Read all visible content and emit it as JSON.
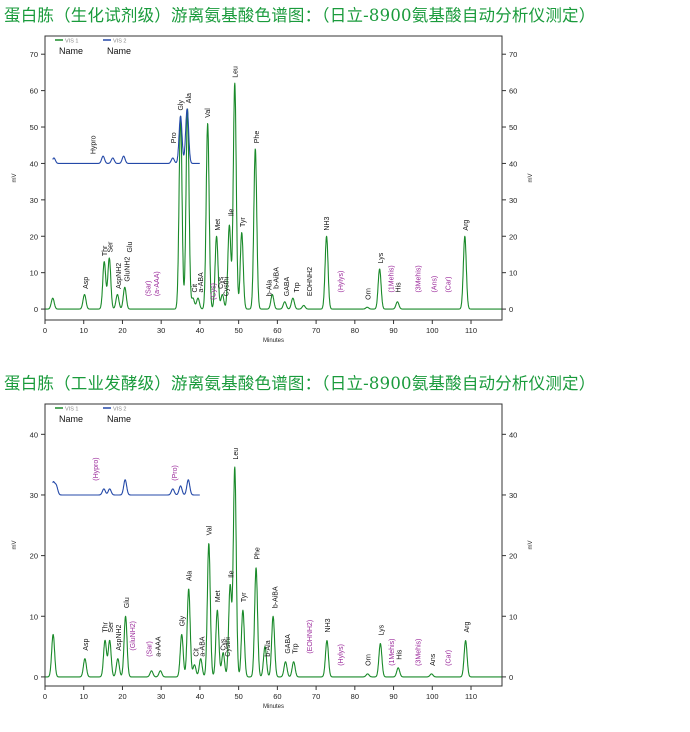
{
  "charts": [
    {
      "heading": "蛋白胨（生化试剂级）游离氨基酸色谱图：（日立-8900氨基酸自动分析仪测定）",
      "legend": [
        {
          "tag": "VIS 1",
          "name": "Name",
          "color": "#1a8a2a"
        },
        {
          "tag": "VIS 2",
          "name": "Name",
          "color": "#2449a8"
        }
      ]
    },
    {
      "heading": "蛋白胨（工业发酵级）游离氨基酸色谱图：（日立-8900氨基酸自动分析仪测定）",
      "legend": [
        {
          "tag": "VIS 1",
          "name": "Name",
          "color": "#1a8a2a"
        },
        {
          "tag": "VIS 2",
          "name": "Name",
          "color": "#2449a8"
        }
      ]
    }
  ],
  "chart_data": [
    {
      "type": "line",
      "title": "蛋白胨（生化试剂级）游离氨基酸色谱图：（日立-8900氨基酸自动分析仪测定）",
      "xlabel": "Minutes",
      "ylabel": "mV",
      "xlim": [
        0,
        118
      ],
      "ylim": [
        -3,
        75
      ],
      "x_ticks": [
        0,
        10,
        20,
        30,
        40,
        50,
        60,
        70,
        80,
        90,
        100,
        110
      ],
      "y_ticks": [
        0,
        10,
        20,
        30,
        40,
        50,
        60,
        70
      ],
      "colors": {
        "series1": "#1a8a2a",
        "series2": "#2449a8",
        "label": "#111111",
        "undetected": "#9b2a9b"
      },
      "series": [
        {
          "name": "VIS 1",
          "baseline": 0,
          "peaks": [
            {
              "x": 2.0,
              "h": 3
            },
            {
              "x": 10.2,
              "h": 4
            },
            {
              "x": 15.3,
              "h": 13
            },
            {
              "x": 16.6,
              "h": 14
            },
            {
              "x": 18.7,
              "h": 4
            },
            {
              "x": 20.6,
              "h": 6
            },
            {
              "x": 35.0,
              "h": 53
            },
            {
              "x": 36.8,
              "h": 55
            },
            {
              "x": 38.2,
              "h": 3
            },
            {
              "x": 39.5,
              "h": 3
            },
            {
              "x": 42.0,
              "h": 51
            },
            {
              "x": 44.3,
              "h": 20
            },
            {
              "x": 45.8,
              "h": 4
            },
            {
              "x": 47.6,
              "h": 23
            },
            {
              "x": 49.0,
              "h": 62
            },
            {
              "x": 50.8,
              "h": 21
            },
            {
              "x": 54.3,
              "h": 44
            },
            {
              "x": 58.7,
              "h": 4
            },
            {
              "x": 61.9,
              "h": 2
            },
            {
              "x": 64.0,
              "h": 3
            },
            {
              "x": 66.8,
              "h": 1
            },
            {
              "x": 72.7,
              "h": 20
            },
            {
              "x": 83.2,
              "h": 0.5
            },
            {
              "x": 86.4,
              "h": 11
            },
            {
              "x": 91.0,
              "h": 2
            },
            {
              "x": 108.4,
              "h": 20
            }
          ]
        },
        {
          "name": "VIS 2",
          "baseline": 40,
          "xrange": [
            2,
            40
          ],
          "peaks": [
            {
              "x": 2.3,
              "h": 1.5
            },
            {
              "x": 15.0,
              "h": 2
            },
            {
              "x": 17.5,
              "h": 1.5
            },
            {
              "x": 20.3,
              "h": 2
            },
            {
              "x": 33.0,
              "h": 1.5
            },
            {
              "x": 35.0,
              "h": 13
            },
            {
              "x": 36.7,
              "h": 15
            }
          ]
        }
      ],
      "labels": [
        {
          "text": "Hypro",
          "x": 12.4,
          "y": 42,
          "kind": "detected"
        },
        {
          "text": "Pro",
          "x": 33.2,
          "y": 45,
          "kind": "detected"
        },
        {
          "text": "Gly",
          "x": 35.0,
          "y": 54,
          "kind": "detected"
        },
        {
          "text": "Ala",
          "x": 37.0,
          "y": 56,
          "kind": "detected"
        },
        {
          "text": "Val",
          "x": 42.0,
          "y": 52,
          "kind": "detected"
        },
        {
          "text": "Leu",
          "x": 49.0,
          "y": 63,
          "kind": "detected"
        },
        {
          "text": "Phe",
          "x": 54.6,
          "y": 45,
          "kind": "detected"
        },
        {
          "text": "Met",
          "x": 44.5,
          "y": 21,
          "kind": "detected"
        },
        {
          "text": "Ile",
          "x": 48.0,
          "y": 25,
          "kind": "detected"
        },
        {
          "text": "Tyr",
          "x": 51.0,
          "y": 22,
          "kind": "detected"
        },
        {
          "text": "Thr",
          "x": 15.3,
          "y": 14,
          "kind": "detected"
        },
        {
          "text": "Ser",
          "x": 16.8,
          "y": 15,
          "kind": "detected"
        },
        {
          "text": "AspNH2",
          "x": 19.0,
          "y": 5,
          "kind": "detected"
        },
        {
          "text": "GluNH2",
          "x": 21.2,
          "y": 7,
          "kind": "detected"
        },
        {
          "text": "Glu",
          "x": 21.8,
          "y": 15,
          "kind": "detected"
        },
        {
          "text": "Asp",
          "x": 10.4,
          "y": 5,
          "kind": "detected"
        },
        {
          "text": "Cit",
          "x": 38.6,
          "y": 4,
          "kind": "detected"
        },
        {
          "text": "a-ABA",
          "x": 40.2,
          "y": 4,
          "kind": "detected"
        },
        {
          "text": "Cys",
          "x": 45.3,
          "y": 5,
          "kind": "detected"
        },
        {
          "text": "Cysthi",
          "x": 46.8,
          "y": 3,
          "kind": "detected"
        },
        {
          "text": "b-Ala",
          "x": 57.8,
          "y": 3,
          "kind": "detected"
        },
        {
          "text": "b-AiBA",
          "x": 59.6,
          "y": 5,
          "kind": "detected"
        },
        {
          "text": "GABA",
          "x": 62.4,
          "y": 3,
          "kind": "detected"
        },
        {
          "text": "Trp",
          "x": 64.9,
          "y": 4,
          "kind": "detected"
        },
        {
          "text": "EOHNH2",
          "x": 68.3,
          "y": 3,
          "kind": "detected"
        },
        {
          "text": "NH3",
          "x": 72.7,
          "y": 21,
          "kind": "detected"
        },
        {
          "text": "Orn",
          "x": 83.4,
          "y": 2,
          "kind": "detected"
        },
        {
          "text": "Lys",
          "x": 86.6,
          "y": 12,
          "kind": "detected"
        },
        {
          "text": "His",
          "x": 91.2,
          "y": 4,
          "kind": "detected"
        },
        {
          "text": "Arg",
          "x": 108.6,
          "y": 21,
          "kind": "detected"
        },
        {
          "text": "(Sar)",
          "x": 26.6,
          "y": 3,
          "kind": "undetected"
        },
        {
          "text": "(a-AAA)",
          "x": 28.8,
          "y": 3,
          "kind": "undetected"
        },
        {
          "text": "(Cys)",
          "x": 43.4,
          "y": 2,
          "kind": "undetected"
        },
        {
          "text": "(Hylys)",
          "x": 76.3,
          "y": 4,
          "kind": "undetected"
        },
        {
          "text": "(1Mehis)",
          "x": 89.4,
          "y": 4,
          "kind": "undetected"
        },
        {
          "text": "(3Mehis)",
          "x": 96.3,
          "y": 4,
          "kind": "undetected"
        },
        {
          "text": "(Ans)",
          "x": 100.4,
          "y": 4,
          "kind": "undetected"
        },
        {
          "text": "(Car)",
          "x": 104.0,
          "y": 4,
          "kind": "undetected"
        }
      ]
    },
    {
      "type": "line",
      "title": "蛋白胨（工业发酵级）游离氨基酸色谱图：（日立-8900氨基酸自动分析仪测定）",
      "xlabel": "Minutes",
      "ylabel": "mV",
      "xlim": [
        0,
        118
      ],
      "ylim": [
        -1.5,
        45
      ],
      "x_ticks": [
        0,
        10,
        20,
        30,
        40,
        50,
        60,
        70,
        80,
        90,
        100,
        110
      ],
      "y_ticks": [
        0,
        10,
        20,
        30,
        40
      ],
      "colors": {
        "series1": "#1a8a2a",
        "series2": "#2449a8",
        "label": "#111111",
        "undetected": "#9b2a9b"
      },
      "series": [
        {
          "name": "VIS 1",
          "baseline": 0,
          "peaks": [
            {
              "x": 2.1,
              "h": 7
            },
            {
              "x": 10.3,
              "h": 3
            },
            {
              "x": 15.5,
              "h": 6
            },
            {
              "x": 16.7,
              "h": 6
            },
            {
              "x": 18.8,
              "h": 3
            },
            {
              "x": 20.8,
              "h": 10
            },
            {
              "x": 27.5,
              "h": 1
            },
            {
              "x": 29.8,
              "h": 1
            },
            {
              "x": 35.3,
              "h": 7
            },
            {
              "x": 37.1,
              "h": 14.5
            },
            {
              "x": 38.6,
              "h": 2
            },
            {
              "x": 40.2,
              "h": 3
            },
            {
              "x": 42.3,
              "h": 22
            },
            {
              "x": 44.5,
              "h": 11
            },
            {
              "x": 46.0,
              "h": 4
            },
            {
              "x": 47.8,
              "h": 15
            },
            {
              "x": 49.0,
              "h": 34.5
            },
            {
              "x": 51.1,
              "h": 11
            },
            {
              "x": 54.5,
              "h": 18
            },
            {
              "x": 56.8,
              "h": 5
            },
            {
              "x": 58.9,
              "h": 10
            },
            {
              "x": 62.1,
              "h": 2.5
            },
            {
              "x": 64.2,
              "h": 2.5
            },
            {
              "x": 72.8,
              "h": 6
            },
            {
              "x": 83.3,
              "h": 0.5
            },
            {
              "x": 86.6,
              "h": 5.5
            },
            {
              "x": 91.2,
              "h": 1.5
            },
            {
              "x": 99.8,
              "h": 0.5
            },
            {
              "x": 108.6,
              "h": 6
            }
          ]
        },
        {
          "name": "VIS 2",
          "baseline": 30,
          "xrange": [
            2,
            40
          ],
          "peaks": [
            {
              "x": 2.1,
              "h": 2
            },
            {
              "x": 2.9,
              "h": 1.5
            },
            {
              "x": 15.2,
              "h": 1
            },
            {
              "x": 16.7,
              "h": 1
            },
            {
              "x": 20.7,
              "h": 2.5
            },
            {
              "x": 33.0,
              "h": 1
            },
            {
              "x": 35.0,
              "h": 1.5
            },
            {
              "x": 37.0,
              "h": 2.5
            }
          ]
        }
      ],
      "labels": [
        {
          "text": "(Hypro)",
          "x": 13.0,
          "y": 32,
          "kind": "undetected"
        },
        {
          "text": "(Pro)",
          "x": 33.5,
          "y": 32,
          "kind": "undetected"
        },
        {
          "text": "Asp",
          "x": 10.4,
          "y": 4,
          "kind": "detected"
        },
        {
          "text": "Thr",
          "x": 15.5,
          "y": 7,
          "kind": "detected"
        },
        {
          "text": "Ser",
          "x": 16.9,
          "y": 7,
          "kind": "detected"
        },
        {
          "text": "AspNH2",
          "x": 19.0,
          "y": 4,
          "kind": "detected"
        },
        {
          "text": "Glu",
          "x": 21.0,
          "y": 11,
          "kind": "detected"
        },
        {
          "text": "(GluNH2)",
          "x": 22.6,
          "y": 4,
          "kind": "undetected"
        },
        {
          "text": "(Sar)",
          "x": 26.8,
          "y": 3,
          "kind": "undetected"
        },
        {
          "text": "a-AAA",
          "x": 29.2,
          "y": 3,
          "kind": "detected"
        },
        {
          "text": "Gly",
          "x": 35.4,
          "y": 8,
          "kind": "detected"
        },
        {
          "text": "Ala",
          "x": 37.2,
          "y": 15.5,
          "kind": "detected"
        },
        {
          "text": "Cit",
          "x": 39.0,
          "y": 3,
          "kind": "detected"
        },
        {
          "text": "a-ABA",
          "x": 40.6,
          "y": 3,
          "kind": "detected"
        },
        {
          "text": "Val",
          "x": 42.3,
          "y": 23,
          "kind": "detected"
        },
        {
          "text": "Met",
          "x": 44.6,
          "y": 12,
          "kind": "detected"
        },
        {
          "text": "Cys",
          "x": 45.9,
          "y": 4,
          "kind": "detected"
        },
        {
          "text": "Cysthi",
          "x": 47.1,
          "y": 3,
          "kind": "detected"
        },
        {
          "text": "Ile",
          "x": 48.0,
          "y": 16,
          "kind": "detected"
        },
        {
          "text": "Leu",
          "x": 49.2,
          "y": 35.5,
          "kind": "detected"
        },
        {
          "text": "Tyr",
          "x": 51.3,
          "y": 12,
          "kind": "detected"
        },
        {
          "text": "Phe",
          "x": 54.7,
          "y": 19,
          "kind": "detected"
        },
        {
          "text": "b-Ala",
          "x": 57.5,
          "y": 3,
          "kind": "detected"
        },
        {
          "text": "b-AiBA",
          "x": 59.4,
          "y": 11,
          "kind": "detected"
        },
        {
          "text": "GABA",
          "x": 62.6,
          "y": 3.5,
          "kind": "detected"
        },
        {
          "text": "Trp",
          "x": 64.6,
          "y": 3.5,
          "kind": "detected"
        },
        {
          "text": "(EOHNH2)",
          "x": 68.3,
          "y": 3.5,
          "kind": "undetected"
        },
        {
          "text": "NH3",
          "x": 73.0,
          "y": 7,
          "kind": "detected"
        },
        {
          "text": "(Hylys)",
          "x": 76.3,
          "y": 1.5,
          "kind": "undetected"
        },
        {
          "text": "Orn",
          "x": 83.4,
          "y": 1.5,
          "kind": "detected"
        },
        {
          "text": "Lys",
          "x": 86.8,
          "y": 6.5,
          "kind": "detected"
        },
        {
          "text": "(1Mehis)",
          "x": 89.5,
          "y": 1.5,
          "kind": "undetected"
        },
        {
          "text": "His",
          "x": 91.4,
          "y": 2.5,
          "kind": "detected"
        },
        {
          "text": "(3Mehis)",
          "x": 96.3,
          "y": 1.5,
          "kind": "undetected"
        },
        {
          "text": "Ans",
          "x": 100.0,
          "y": 1.5,
          "kind": "detected"
        },
        {
          "text": "(Car)",
          "x": 104.0,
          "y": 1.5,
          "kind": "undetected"
        },
        {
          "text": "Arg",
          "x": 108.8,
          "y": 7,
          "kind": "detected"
        }
      ]
    }
  ]
}
